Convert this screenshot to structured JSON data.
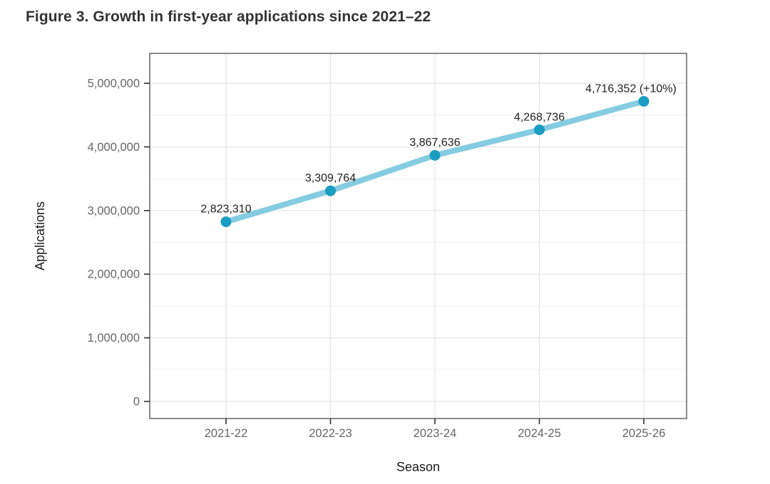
{
  "header": {
    "title": "Figure 3. Growth in first-year applications since 2021–22"
  },
  "chart_data": {
    "type": "line",
    "title": "Figure 3. Growth in first-year applications since 2021–22",
    "xlabel": "Season",
    "ylabel": "Applications",
    "categories": [
      "2021-22",
      "2022-23",
      "2023-24",
      "2024-25",
      "2025-26"
    ],
    "series": [
      {
        "name": "First-year applications",
        "values": [
          2823310,
          3309764,
          3867636,
          4268736,
          4716352
        ],
        "point_labels": [
          "2,823,310",
          "3,309,764",
          "3,867,636",
          "4,268,736",
          "4,716,352 (+10%)"
        ]
      }
    ],
    "ylim": [
      0,
      5470000
    ],
    "ytick_values": [
      0,
      1000000,
      2000000,
      3000000,
      4000000,
      5000000
    ],
    "ytick_labels": [
      "0",
      "1,000,000",
      "2,000,000",
      "3,000,000",
      "4,000,000",
      "5,000,000"
    ],
    "ytick_minor_values": [
      500000,
      1500000,
      2500000,
      3500000,
      4500000
    ],
    "grid": {
      "horizontal": "major+minor",
      "vertical": "major",
      "shown": true
    },
    "legend": "none",
    "colors": {
      "line": "#85CCE0",
      "marker": "#1A9DC0",
      "grid_major": "#e4e4e4",
      "grid_minor": "#f2f2f2",
      "panel_border": "#4f4f4f",
      "tick_mark": "#2f2f2f",
      "title_text": "#333333",
      "axis_tick_text": "#666666",
      "axis_title_text": "#1a1a1a",
      "point_label_text": "#212121"
    }
  }
}
